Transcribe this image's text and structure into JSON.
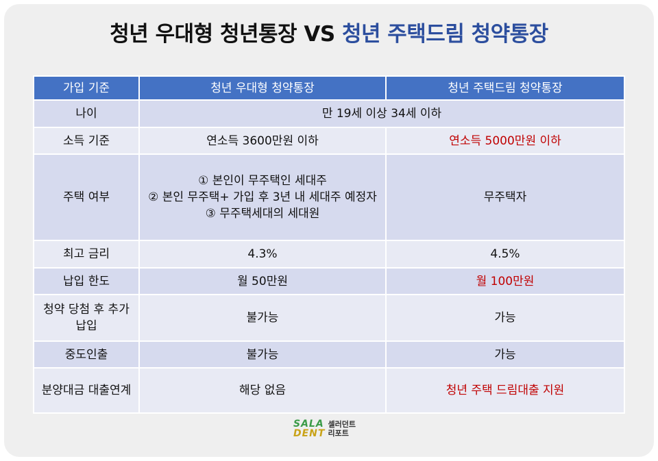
{
  "title": {
    "main": "청년 우대형 청년통장 VS",
    "highlight": "청년 주택드림 청약통장"
  },
  "table": {
    "header": [
      "가입 기준",
      "청년 우대형 청약통장",
      "청년 주택드림 청약통장"
    ],
    "rows": [
      [
        "나이",
        "만 19세 이상 34세 이하"
      ],
      [
        "소득 기준",
        "연소득 3600만원 이하",
        "연소득 5000만원 이하"
      ],
      [
        "주택 여부",
        [
          "① 본인이 무주택인 세대주",
          "② 본인 무주택+ 가입 후 3년 내 세대주 예정자",
          "③ 무주택세대의 세대원"
        ],
        "무주택자"
      ],
      [
        "최고 금리",
        "4.3%",
        "4.5%"
      ],
      [
        "납입 한도",
        "월 50만원",
        "월 100만원"
      ],
      [
        "청약 당첨 후 추가납입",
        "불가능",
        "가능"
      ],
      [
        "중도인출",
        "불가능",
        "가능"
      ],
      [
        "분양대금 대출연계",
        "해당 없음",
        "청년 주택 드림대출 지원"
      ]
    ]
  },
  "footer": {
    "logo_top": "SALA",
    "logo_bottom": "DENT",
    "brand_top": "셀러던트",
    "brand_bottom": "리포트"
  }
}
